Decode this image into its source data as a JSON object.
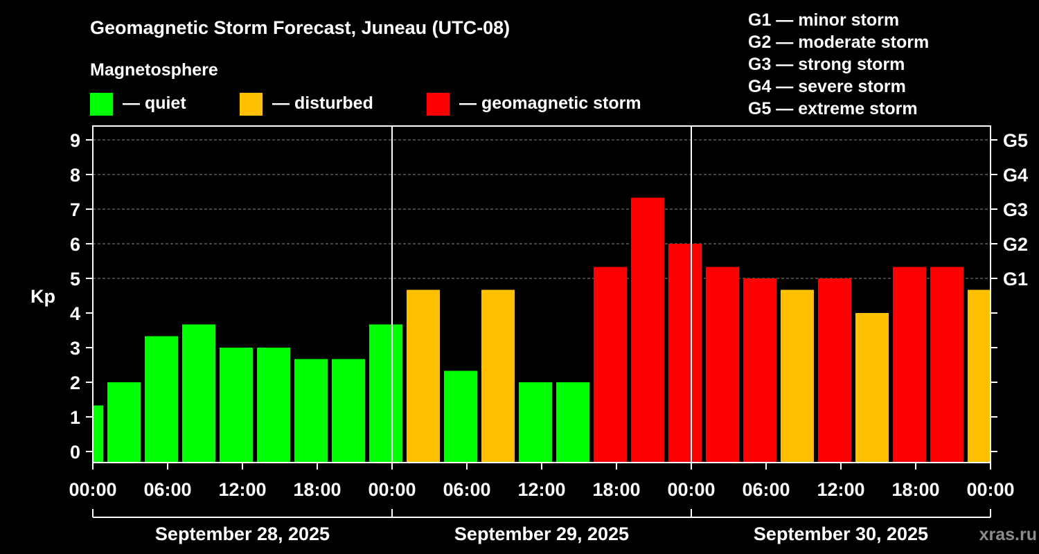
{
  "header": {
    "title": "Geomagnetic Storm Forecast, Juneau (UTC-08)",
    "legend_title": "Magnetosphere",
    "legend": [
      {
        "label": "— quiet",
        "color": "#00ff00"
      },
      {
        "label": "— disturbed",
        "color": "#ffc000"
      },
      {
        "label": "— geomagnetic storm",
        "color": "#ff0000"
      }
    ],
    "scale": [
      "G1 — minor storm",
      "G2 — moderate storm",
      "G3 — strong storm",
      "G4 — severe storm",
      "G5 — extreme storm"
    ]
  },
  "chart_data": {
    "type": "bar",
    "ylabel": "Kp",
    "ylim": [
      0,
      9
    ],
    "yticks": [
      "0",
      "1",
      "2",
      "3",
      "4",
      "5",
      "6",
      "7",
      "8",
      "9"
    ],
    "right_ticks": [
      {
        "kp": 5,
        "label": "G1"
      },
      {
        "kp": 6,
        "label": "G2"
      },
      {
        "kp": 7,
        "label": "G3"
      },
      {
        "kp": 8,
        "label": "G4"
      },
      {
        "kp": 9,
        "label": "G5"
      }
    ],
    "xlim_hours": [
      0,
      72
    ],
    "xticks": [
      {
        "hour": 0,
        "label": "00:00"
      },
      {
        "hour": 6,
        "label": "06:00"
      },
      {
        "hour": 12,
        "label": "12:00"
      },
      {
        "hour": 18,
        "label": "18:00"
      },
      {
        "hour": 24,
        "label": "00:00"
      },
      {
        "hour": 30,
        "label": "06:00"
      },
      {
        "hour": 36,
        "label": "12:00"
      },
      {
        "hour": 42,
        "label": "18:00"
      },
      {
        "hour": 48,
        "label": "00:00"
      },
      {
        "hour": 54,
        "label": "06:00"
      },
      {
        "hour": 60,
        "label": "12:00"
      },
      {
        "hour": 66,
        "label": "18:00"
      },
      {
        "hour": 72,
        "label": "00:00"
      }
    ],
    "days": [
      {
        "label": "September 28, 2025",
        "start": 0,
        "end": 24
      },
      {
        "label": "September 29, 2025",
        "start": 24,
        "end": 48
      },
      {
        "label": "September 30, 2025",
        "start": 48,
        "end": 72
      }
    ],
    "grid": "dashed at 5, 6, 7, 8, 9",
    "bars": [
      {
        "start": 0,
        "end": 1,
        "kp": 1.33,
        "level": "quiet"
      },
      {
        "start": 1,
        "end": 4,
        "kp": 2.0,
        "level": "quiet"
      },
      {
        "start": 4,
        "end": 7,
        "kp": 3.33,
        "level": "quiet"
      },
      {
        "start": 7,
        "end": 10,
        "kp": 3.67,
        "level": "quiet"
      },
      {
        "start": 10,
        "end": 13,
        "kp": 3.0,
        "level": "quiet"
      },
      {
        "start": 13,
        "end": 16,
        "kp": 3.0,
        "level": "quiet"
      },
      {
        "start": 16,
        "end": 19,
        "kp": 2.67,
        "level": "quiet"
      },
      {
        "start": 19,
        "end": 22,
        "kp": 2.67,
        "level": "quiet"
      },
      {
        "start": 22,
        "end": 25,
        "kp": 3.67,
        "level": "quiet"
      },
      {
        "start": 25,
        "end": 28,
        "kp": 4.67,
        "level": "disturbed"
      },
      {
        "start": 28,
        "end": 31,
        "kp": 2.33,
        "level": "quiet"
      },
      {
        "start": 31,
        "end": 34,
        "kp": 4.67,
        "level": "disturbed"
      },
      {
        "start": 34,
        "end": 37,
        "kp": 2.0,
        "level": "quiet"
      },
      {
        "start": 37,
        "end": 40,
        "kp": 2.0,
        "level": "quiet"
      },
      {
        "start": 40,
        "end": 43,
        "kp": 5.33,
        "level": "storm"
      },
      {
        "start": 43,
        "end": 46,
        "kp": 7.33,
        "level": "storm"
      },
      {
        "start": 46,
        "end": 49,
        "kp": 6.0,
        "level": "storm"
      },
      {
        "start": 49,
        "end": 52,
        "kp": 5.33,
        "level": "storm"
      },
      {
        "start": 52,
        "end": 55,
        "kp": 5.0,
        "level": "storm"
      },
      {
        "start": 55,
        "end": 58,
        "kp": 4.67,
        "level": "disturbed"
      },
      {
        "start": 58,
        "end": 61,
        "kp": 5.0,
        "level": "storm"
      },
      {
        "start": 61,
        "end": 64,
        "kp": 4.0,
        "level": "disturbed"
      },
      {
        "start": 64,
        "end": 67,
        "kp": 5.33,
        "level": "storm"
      },
      {
        "start": 67,
        "end": 70,
        "kp": 5.33,
        "level": "storm"
      },
      {
        "start": 70,
        "end": 72,
        "kp": 4.67,
        "level": "disturbed"
      }
    ],
    "colors": {
      "quiet": "#00ff00",
      "disturbed": "#ffc000",
      "storm": "#ff0000"
    }
  },
  "watermark": "xras.ru"
}
